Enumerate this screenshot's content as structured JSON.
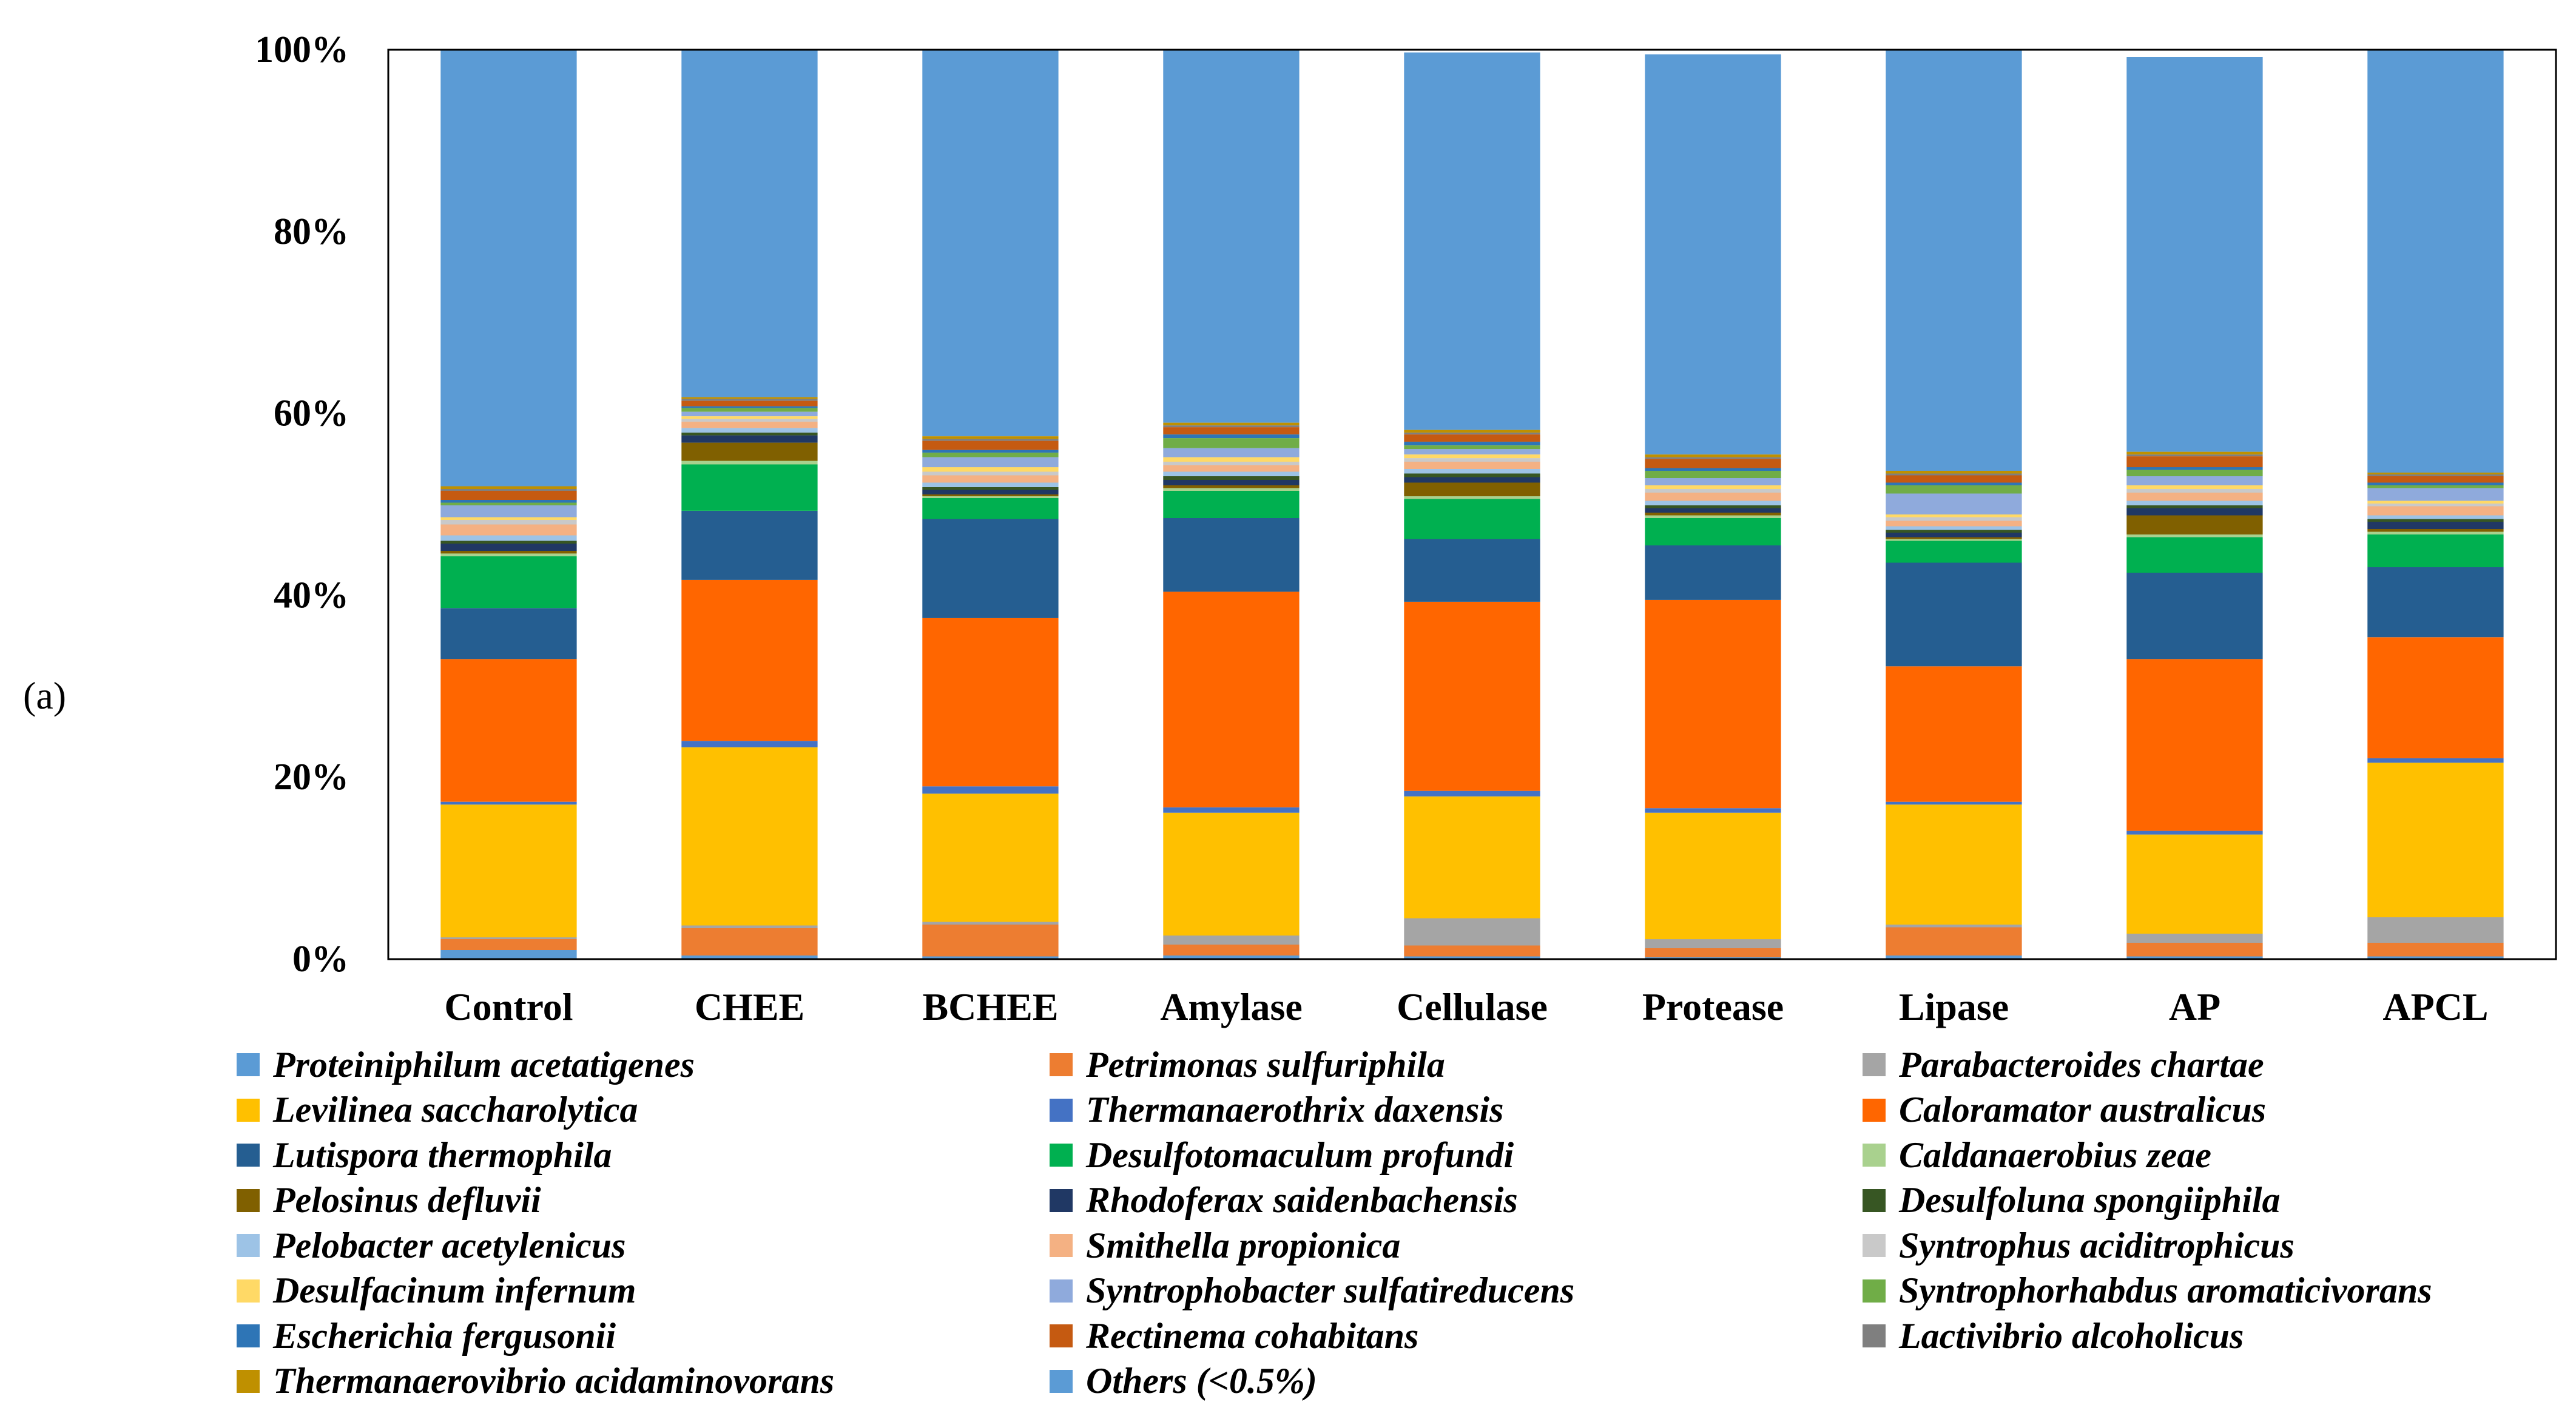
{
  "panel_label": "(a)",
  "chart_data": {
    "type": "stacked-bar-100",
    "title": "",
    "xlabel": "",
    "ylabel": "",
    "ylim": [
      0,
      100
    ],
    "y_ticks": [
      0,
      20,
      40,
      60,
      80,
      100
    ],
    "y_tick_labels": [
      "0%",
      "20%",
      "40%",
      "60%",
      "80%",
      "100%"
    ],
    "legend_position": "bottom",
    "categories": [
      "Control",
      "CHEE",
      "BCHEE",
      "Amylase",
      "Cellulase",
      "Protease",
      "Lipase",
      "AP",
      "APCL"
    ],
    "series": [
      {
        "name": "Others (<0.5%)",
        "color": "#5b9bd5",
        "values": [
          1,
          0.4,
          0.3,
          0.4,
          0.3,
          0.2,
          0.4,
          0.3,
          0.3
        ]
      },
      {
        "name": "Petrimonas sulfuriphila",
        "color": "#ed7d31",
        "values": [
          1.2,
          3,
          3.5,
          1.2,
          1.2,
          1,
          3.1,
          1.5,
          1.5
        ]
      },
      {
        "name": "Parabacteroides chartae",
        "color": "#a5a5a5",
        "values": [
          0.2,
          0.3,
          0.3,
          1,
          3,
          1,
          0.3,
          1,
          2.8
        ]
      },
      {
        "name": "Levilinea saccharolytica",
        "color": "#ffc000",
        "values": [
          14.6,
          19.6,
          14.1,
          13.5,
          13.4,
          13.9,
          13.2,
          10.9,
          17
        ]
      },
      {
        "name": "Thermanaerothrix daxensis",
        "color": "#4472c4",
        "values": [
          0.3,
          0.7,
          0.8,
          0.6,
          0.6,
          0.5,
          0.3,
          0.4,
          0.5
        ]
      },
      {
        "name": "Caloramator australicus",
        "color": "#ff6600",
        "values": [
          15.7,
          17.7,
          18.5,
          23.7,
          20.8,
          22.9,
          14.9,
          18.9,
          13.3
        ]
      },
      {
        "name": "Lutispora thermophila",
        "color": "#255e91",
        "values": [
          5.6,
          7.6,
          10.9,
          8.1,
          6.9,
          6,
          11.4,
          9.5,
          7.7
        ]
      },
      {
        "name": "Desulfotomaculum profundi",
        "color": "#00b050",
        "values": [
          5.7,
          5.1,
          2.3,
          3,
          4.4,
          3,
          2.4,
          3.9,
          3.6
        ]
      },
      {
        "name": "Caldanaerobius zeae",
        "color": "#a9d18e",
        "values": [
          0.3,
          0.4,
          0.2,
          0.3,
          0.3,
          0.3,
          0.2,
          0.3,
          0.3
        ]
      },
      {
        "name": "Pelosinus defluvii",
        "color": "#806000",
        "values": [
          0.3,
          2,
          0.2,
          0.3,
          1.5,
          0.3,
          0.2,
          2.1,
          0.3
        ]
      },
      {
        "name": "Rhodoferax saidenbachensis",
        "color": "#203864",
        "values": [
          0.8,
          0.8,
          0.5,
          0.6,
          0.6,
          0.5,
          0.5,
          0.8,
          0.8
        ]
      },
      {
        "name": "Desulfoluna spongiiphila",
        "color": "#375623",
        "values": [
          0.3,
          0.3,
          0.3,
          0.4,
          0.4,
          0.3,
          0.3,
          0.3,
          0.3
        ]
      },
      {
        "name": "Pelobacter acetylenicus",
        "color": "#9dc3e6",
        "values": [
          0.6,
          0.5,
          0.5,
          0.5,
          0.5,
          0.5,
          0.4,
          0.5,
          0.4
        ]
      },
      {
        "name": "Smithella propionica",
        "color": "#f4b183",
        "values": [
          1.2,
          0.7,
          0.8,
          0.7,
          0.8,
          0.9,
          0.6,
          0.9,
          1
        ]
      },
      {
        "name": "Syntrophus aciditrophicus",
        "color": "#c9c9c9",
        "values": [
          0.5,
          0.3,
          0.4,
          0.4,
          0.4,
          0.4,
          0.4,
          0.4,
          0.3
        ]
      },
      {
        "name": "Desulfacinum infernum",
        "color": "#ffd966",
        "values": [
          0.3,
          0.3,
          0.5,
          0.5,
          0.4,
          0.4,
          0.3,
          0.4,
          0.3
        ]
      },
      {
        "name": "Syntrophobacter sulfatireducens",
        "color": "#8faadc",
        "values": [
          1.3,
          0.5,
          1.1,
          1,
          0.6,
          0.8,
          2.3,
          1,
          1.4
        ]
      },
      {
        "name": "Syntrophorhabdus aromaticivorans",
        "color": "#70ad47",
        "values": [
          0.3,
          0.4,
          0.5,
          1.1,
          0.4,
          0.8,
          0.9,
          0.7,
          0.3
        ]
      },
      {
        "name": "Escherichia fergusonii",
        "color": "#2e75b6",
        "values": [
          0.3,
          0.2,
          0.3,
          0.4,
          0.4,
          0.3,
          0.3,
          0.3,
          0.3
        ]
      },
      {
        "name": "Rectinema cohabitans",
        "color": "#c55a11",
        "values": [
          1,
          0.6,
          1,
          0.8,
          0.8,
          1,
          0.8,
          1.2,
          0.7
        ]
      },
      {
        "name": "Lactivibrio alcoholicus",
        "color": "#7f7f7f",
        "values": [
          0.2,
          0.2,
          0.2,
          0.2,
          0.2,
          0.2,
          0.2,
          0.2,
          0.2
        ]
      },
      {
        "name": "Thermanaerovibrio acidaminovorans",
        "color": "#bf9000",
        "values": [
          0.3,
          0.2,
          0.3,
          0.3,
          0.3,
          0.3,
          0.3,
          0.3,
          0.2
        ]
      },
      {
        "name": "Proteiniphilum acetatigenes",
        "color": "#5b9bd5",
        "values": [
          48,
          38.3,
          42.5,
          41,
          41.5,
          44,
          46.3,
          43.4,
          46.5
        ]
      }
    ],
    "legend_order": [
      "Proteiniphilum acetatigenes",
      "Petrimonas sulfuriphila",
      "Parabacteroides chartae",
      "Levilinea saccharolytica",
      "Thermanaerothrix daxensis",
      "Caloramator australicus",
      "Lutispora thermophila",
      "Desulfotomaculum profundi",
      "Caldanaerobius zeae",
      "Pelosinus defluvii",
      "Rhodoferax saidenbachensis",
      "Desulfoluna spongiiphila",
      "Pelobacter acetylenicus",
      "Smithella propionica",
      "Syntrophus aciditrophicus",
      "Desulfacinum infernum",
      "Syntrophobacter sulfatireducens",
      "Syntrophorhabdus aromaticivorans",
      "Escherichia fergusonii",
      "Rectinema cohabitans",
      "Lactivibrio alcoholicus",
      "Thermanaerovibrio acidaminovorans",
      "Others (<0.5%)"
    ]
  }
}
